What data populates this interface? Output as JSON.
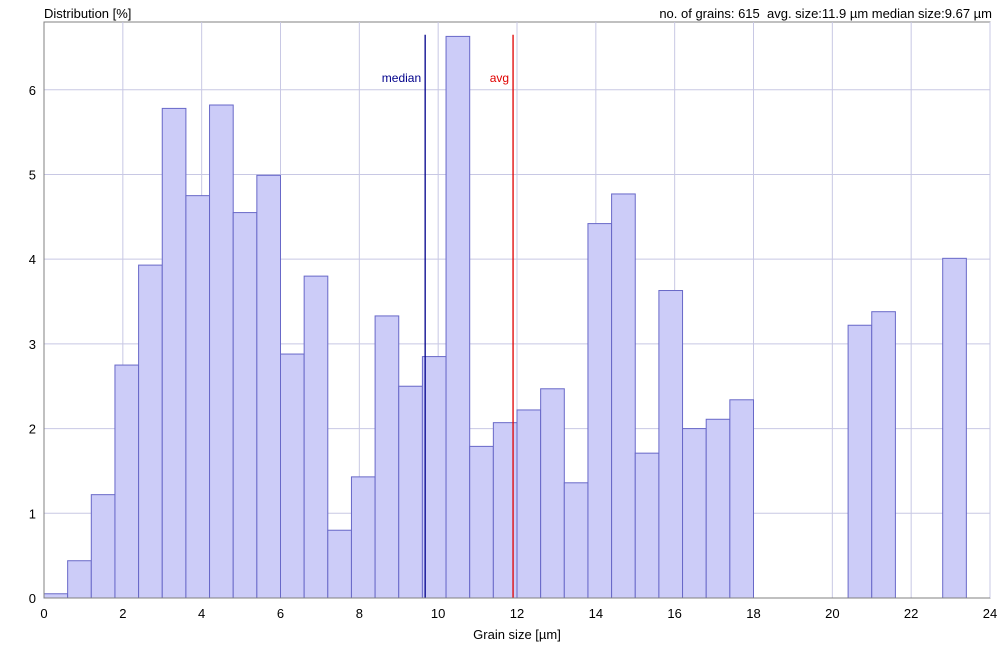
{
  "header": {
    "ylabel": "Distribution [%]",
    "stats_text": "no. of grains: 615  avg. size:11.9 µm median size:9.67 µm"
  },
  "chart_data": {
    "type": "bar",
    "xlabel": "Grain size [µm]",
    "ylabel": "Distribution [%]",
    "xlim": [
      0,
      24
    ],
    "ylim": [
      0,
      6.8
    ],
    "xticks": [
      0,
      2,
      4,
      6,
      8,
      10,
      12,
      14,
      16,
      18,
      20,
      22,
      24
    ],
    "yticks": [
      0,
      1,
      2,
      3,
      4,
      5,
      6
    ],
    "grid": true,
    "bin_width": 0.6,
    "bins": [
      {
        "x": 0.0,
        "value": 0.05
      },
      {
        "x": 0.6,
        "value": 0.44
      },
      {
        "x": 1.2,
        "value": 1.22
      },
      {
        "x": 1.8,
        "value": 2.75
      },
      {
        "x": 2.4,
        "value": 3.93
      },
      {
        "x": 3.0,
        "value": 5.78
      },
      {
        "x": 3.6,
        "value": 4.75
      },
      {
        "x": 4.2,
        "value": 5.82
      },
      {
        "x": 4.8,
        "value": 4.55
      },
      {
        "x": 5.4,
        "value": 4.99
      },
      {
        "x": 6.0,
        "value": 2.88
      },
      {
        "x": 6.6,
        "value": 3.8
      },
      {
        "x": 7.2,
        "value": 0.8
      },
      {
        "x": 7.8,
        "value": 1.43
      },
      {
        "x": 8.4,
        "value": 3.33
      },
      {
        "x": 9.0,
        "value": 2.5
      },
      {
        "x": 9.6,
        "value": 2.85
      },
      {
        "x": 10.2,
        "value": 6.63
      },
      {
        "x": 10.8,
        "value": 1.79
      },
      {
        "x": 11.4,
        "value": 2.07
      },
      {
        "x": 12.0,
        "value": 2.22
      },
      {
        "x": 12.6,
        "value": 2.47
      },
      {
        "x": 13.2,
        "value": 1.36
      },
      {
        "x": 13.8,
        "value": 4.42
      },
      {
        "x": 14.4,
        "value": 4.77
      },
      {
        "x": 15.0,
        "value": 1.71
      },
      {
        "x": 15.6,
        "value": 3.63
      },
      {
        "x": 16.2,
        "value": 2.0
      },
      {
        "x": 16.8,
        "value": 2.11
      },
      {
        "x": 17.4,
        "value": 2.34
      },
      {
        "x": 20.4,
        "value": 3.22
      },
      {
        "x": 21.0,
        "value": 3.38
      },
      {
        "x": 22.8,
        "value": 4.01
      }
    ],
    "markers": [
      {
        "label": "median",
        "x": 9.67,
        "color": "#00008b"
      },
      {
        "label": "avg",
        "x": 11.9,
        "color": "#e00000"
      }
    ],
    "colors": {
      "bar_fill": "#ccccf8",
      "bar_stroke": "#6868c8",
      "grid": "#c8c8e4",
      "axis": "#808080"
    }
  }
}
